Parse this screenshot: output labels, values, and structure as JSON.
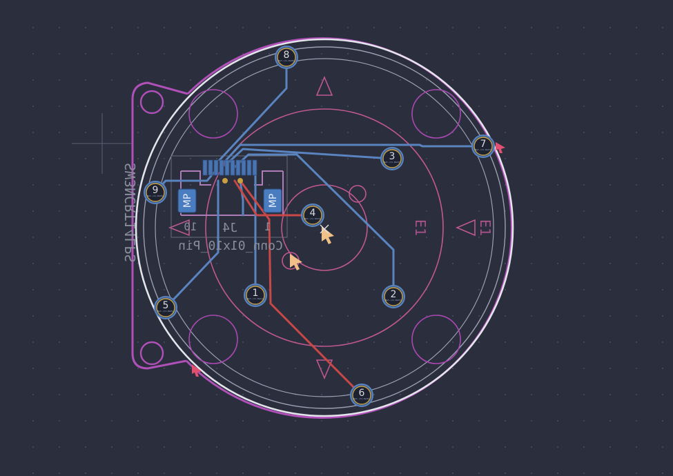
{
  "board": {
    "pads": [
      {
        "label": "1",
        "sub": "Net-(J1-Pad1)"
      },
      {
        "label": "2",
        "sub": "Net-(J1-Pad2)"
      },
      {
        "label": "3",
        "sub": "Net-(J1-Pad3)"
      },
      {
        "label": "4",
        "sub": "Net-(J1-Pad4)"
      },
      {
        "label": "5",
        "sub": "Net-(J1-Pad5)"
      },
      {
        "label": "6",
        "sub": "Net-(J1-Pad6)"
      },
      {
        "label": "7",
        "sub": "Net-(J1-Pad7)"
      },
      {
        "label": "8",
        "sub": "Net-(J1-Pad8)"
      },
      {
        "label": "9",
        "sub": "Net-(J1-Pad9)"
      }
    ],
    "connector_ref": "J4",
    "connector_value": "Conn_01x10_Pin",
    "connector_pin_first": "1",
    "connector_pin_last": "10",
    "mount_pad_label": "MP",
    "part_ref_vertical": "SW3NCRT14LPS",
    "e1_ref": "E1",
    "e1_ref_back": "E1"
  },
  "colors": {
    "background": "#2b2f3d",
    "grid_dot": "#4a5064",
    "board_outline": "#e4e4ec",
    "courtyard": "#b050b8",
    "fab_pink": "#c05890",
    "silk_gray": "#8a8e9c",
    "track_blue": "#5a84c0",
    "track_red": "#c84848",
    "pad_ring": "#c8a040",
    "marker": "#f0c088"
  }
}
